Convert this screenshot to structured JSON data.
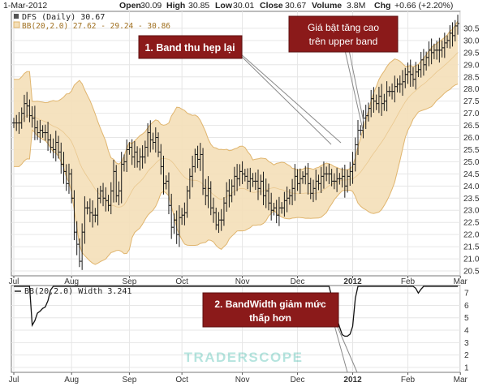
{
  "header": {
    "date": "1-Mar-2012",
    "open_label": "Open",
    "open": "30.09",
    "high_label": "High",
    "high": "30.85",
    "low_label": "Low",
    "low": "30.01",
    "close_label": "Close",
    "close": "30.67",
    "volume_label": "Volume",
    "volume": "3.8M",
    "chg_label": "Chg",
    "chg": "+0.66 (+2.20%)"
  },
  "price_panel": {
    "legend_symbol": "DFS (Daily) 30.67",
    "legend_bb": "BB(20,2.0) 27.62 - 29.24 - 30.86"
  },
  "width_panel": {
    "legend": "BB(20,2.0) Width 3.241"
  },
  "annotations": {
    "band_narrow": "1. Band thu hẹp lại",
    "breakout_line1": "Giá bật tăng cao",
    "breakout_line2": "trên upper band",
    "bandwidth_line1": "2. BandWidth giảm mức",
    "bandwidth_line2": "thấp hơn"
  },
  "watermark": "TRADERSCOPE",
  "colors": {
    "band_fill": "#f4dfb8",
    "band_line": "#e0b56e",
    "bar": "#1a1a1a",
    "callout_bg": "#8b1a1a",
    "callout_text": "#ffffff",
    "plot_bg": "#ffffff",
    "frame": "#7a7a7a"
  },
  "chart_data": [
    {
      "type": "line",
      "title": "DFS (Daily)",
      "x_tick_labels": [
        "Jul",
        "Aug",
        "Sep",
        "Oct",
        "Nov",
        "Dec",
        "2012",
        "Feb",
        "Mar"
      ],
      "x_tick_index": [
        0,
        22,
        44,
        64,
        87,
        108,
        129,
        150,
        170
      ],
      "ylim": [
        20.3,
        31.2
      ],
      "y_ticks": [
        20.5,
        21.0,
        21.5,
        22.0,
        22.5,
        23.0,
        23.5,
        24.0,
        24.5,
        25.0,
        25.5,
        26.0,
        26.5,
        27.0,
        27.5,
        28.0,
        28.5,
        29.0,
        29.5,
        30.0,
        30.5
      ],
      "grid": true,
      "series": [
        {
          "name": "DFS",
          "values": [
            26.6,
            26.6,
            26.6,
            27.0,
            27.4,
            27.3,
            26.9,
            26.8,
            26.4,
            26.2,
            26.3,
            26.2,
            26.2,
            25.9,
            25.6,
            25.5,
            25.8,
            25.4,
            24.9,
            24.6,
            24.1,
            24.5,
            23.5,
            22.1,
            21.6,
            20.9,
            22.1,
            23.1,
            23.1,
            22.9,
            22.8,
            22.8,
            23.5,
            23.8,
            23.5,
            23.4,
            23.2,
            23.8,
            24.6,
            23.6,
            23.8,
            24.9,
            25.0,
            25.5,
            25.6,
            25.2,
            25.4,
            25.0,
            25.2,
            25.2,
            25.6,
            26.2,
            25.9,
            25.8,
            26.0,
            25.4,
            24.8,
            24.1,
            24.2,
            23.2,
            22.3,
            22.6,
            22.0,
            22.7,
            22.8,
            22.9,
            23.8,
            24.4,
            24.8,
            25.3,
            25.1,
            25.3,
            23.9,
            23.6,
            23.9,
            23.1,
            22.9,
            22.4,
            22.6,
            22.6,
            23.3,
            23.8,
            23.6,
            24.0,
            24.4,
            24.3,
            24.6,
            24.5,
            24.4,
            24.2,
            24.3,
            24.2,
            24.2,
            23.9,
            24.2,
            23.6,
            23.8,
            23.3,
            23.0,
            23.1,
            22.8,
            23.1,
            23.1,
            23.4,
            23.5,
            23.6,
            23.9,
            24.4,
            24.1,
            24.3,
            24.4,
            24.5,
            24.1,
            23.7,
            23.9,
            24.2,
            24.1,
            24.4,
            24.5,
            24.5,
            24.5,
            24.2,
            24.2,
            24.3,
            24.3,
            24.4,
            24.0,
            24.4,
            24.6,
            24.9,
            25.7,
            26.3,
            26.3,
            26.8,
            26.9,
            27.2,
            27.6,
            27.5,
            27.4,
            27.7,
            27.4,
            27.5,
            27.9,
            27.9,
            27.9,
            28.1,
            28.2,
            28.2,
            28.3,
            28.6,
            28.7,
            28.6,
            28.4,
            28.7,
            28.8,
            29.2,
            29.0,
            29.3,
            29.6,
            29.5,
            29.6,
            29.6,
            29.6,
            29.7,
            29.9,
            30.0,
            30.3,
            30.2,
            30.6,
            30.7
          ]
        },
        {
          "name": "BB Upper",
          "values_summary": "upper Bollinger band, ends at 30.86"
        },
        {
          "name": "BB Middle",
          "values_summary": "20-day SMA, ends at 29.24"
        },
        {
          "name": "BB Lower",
          "values_summary": "lower Bollinger band, ends at 27.62"
        }
      ]
    },
    {
      "type": "line",
      "title": "BB(20,2.0) Width",
      "x_tick_labels": [
        "Jul",
        "Aug",
        "Sep",
        "Oct",
        "Nov",
        "Dec",
        "2012",
        "Feb",
        "Mar"
      ],
      "ylim": [
        0.6,
        7.6
      ],
      "y_ticks": [
        1,
        2,
        3,
        4,
        5,
        6,
        7
      ],
      "grid": true,
      "series": [
        {
          "name": "BB Width",
          "values_summary": "computed from the price series; last value 3.241"
        }
      ]
    }
  ]
}
